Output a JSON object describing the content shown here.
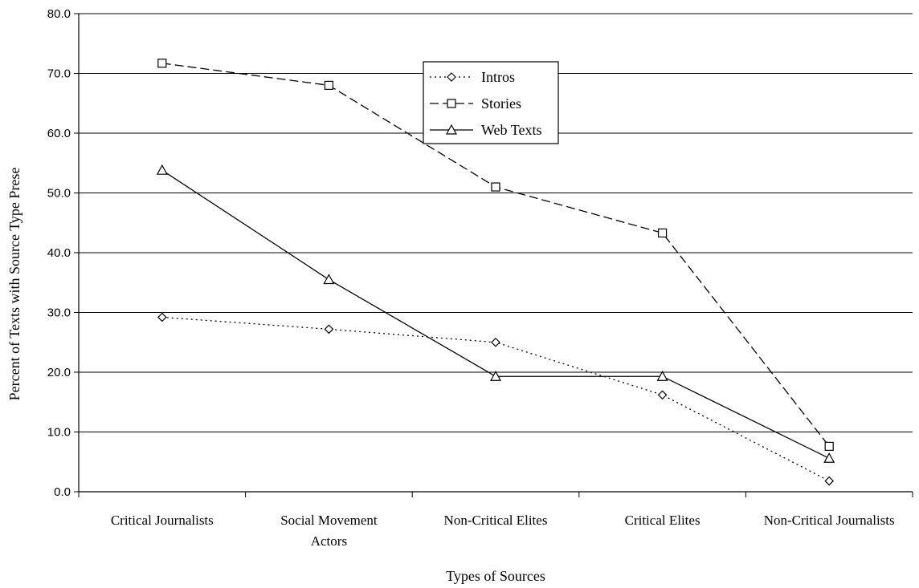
{
  "chart_data": {
    "type": "line",
    "categories": [
      "Critical Journalists",
      "Social Movement Actors",
      "Non-Critical Elites",
      "Critical Elites",
      "Non-Critical Journalists"
    ],
    "category_lines": [
      [
        "Critical Journalists"
      ],
      [
        "Social Movement",
        "Actors"
      ],
      [
        "Non-Critical Elites"
      ],
      [
        "Critical Elites"
      ],
      [
        "Non-Critical Journalists"
      ]
    ],
    "series": [
      {
        "name": "Intros",
        "values": [
          29.2,
          27.2,
          25.0,
          16.2,
          1.8
        ],
        "line_style": "dotted",
        "marker": "diamond"
      },
      {
        "name": "Stories",
        "values": [
          71.7,
          68.0,
          51.0,
          43.3,
          7.6
        ],
        "line_style": "dashed",
        "marker": "square"
      },
      {
        "name": "Web Texts",
        "values": [
          53.8,
          35.5,
          19.3,
          19.3,
          5.6
        ],
        "line_style": "solid",
        "marker": "triangle"
      }
    ],
    "xlabel": "Types of Sources",
    "ylabel": "Percent of Texts with Source Type Prese",
    "ylim": [
      0,
      80
    ],
    "yticks": [
      "0.0",
      "10.0",
      "20.0",
      "30.0",
      "40.0",
      "50.0",
      "60.0",
      "70.0",
      "80.0"
    ],
    "grid": true,
    "legend_position": "top-center",
    "colors": {
      "line": "#000000",
      "grid": "#000000",
      "background": "#ffffff"
    }
  }
}
